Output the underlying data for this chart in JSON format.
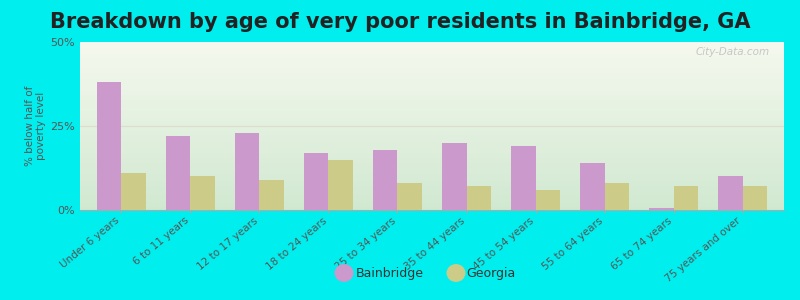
{
  "title": "Breakdown by age of very poor residents in Bainbridge, GA",
  "ylabel": "% below half of\npoverty level",
  "categories": [
    "Under 6 years",
    "6 to 11 years",
    "12 to 17 years",
    "18 to 24 years",
    "25 to 34 years",
    "35 to 44 years",
    "45 to 54 years",
    "55 to 64 years",
    "65 to 74 years",
    "75 years and over"
  ],
  "bainbridge": [
    38,
    22,
    23,
    17,
    18,
    20,
    19,
    14,
    0.5,
    10
  ],
  "georgia": [
    11,
    10,
    9,
    15,
    8,
    7,
    6,
    8,
    7,
    7
  ],
  "bar_color_bainbridge": "#cc99cc",
  "bar_color_georgia": "#cccc88",
  "background_outer": "#00eeee",
  "background_inner_top": "#f5f8ee",
  "background_inner_bottom": "#d0e8d0",
  "ylim": [
    0,
    50
  ],
  "yticks": [
    0,
    25,
    50
  ],
  "ytick_labels": [
    "0%",
    "25%",
    "50%"
  ],
  "title_fontsize": 15,
  "legend_labels": [
    "Bainbridge",
    "Georgia"
  ],
  "bar_width": 0.35,
  "watermark": "City-Data.com"
}
